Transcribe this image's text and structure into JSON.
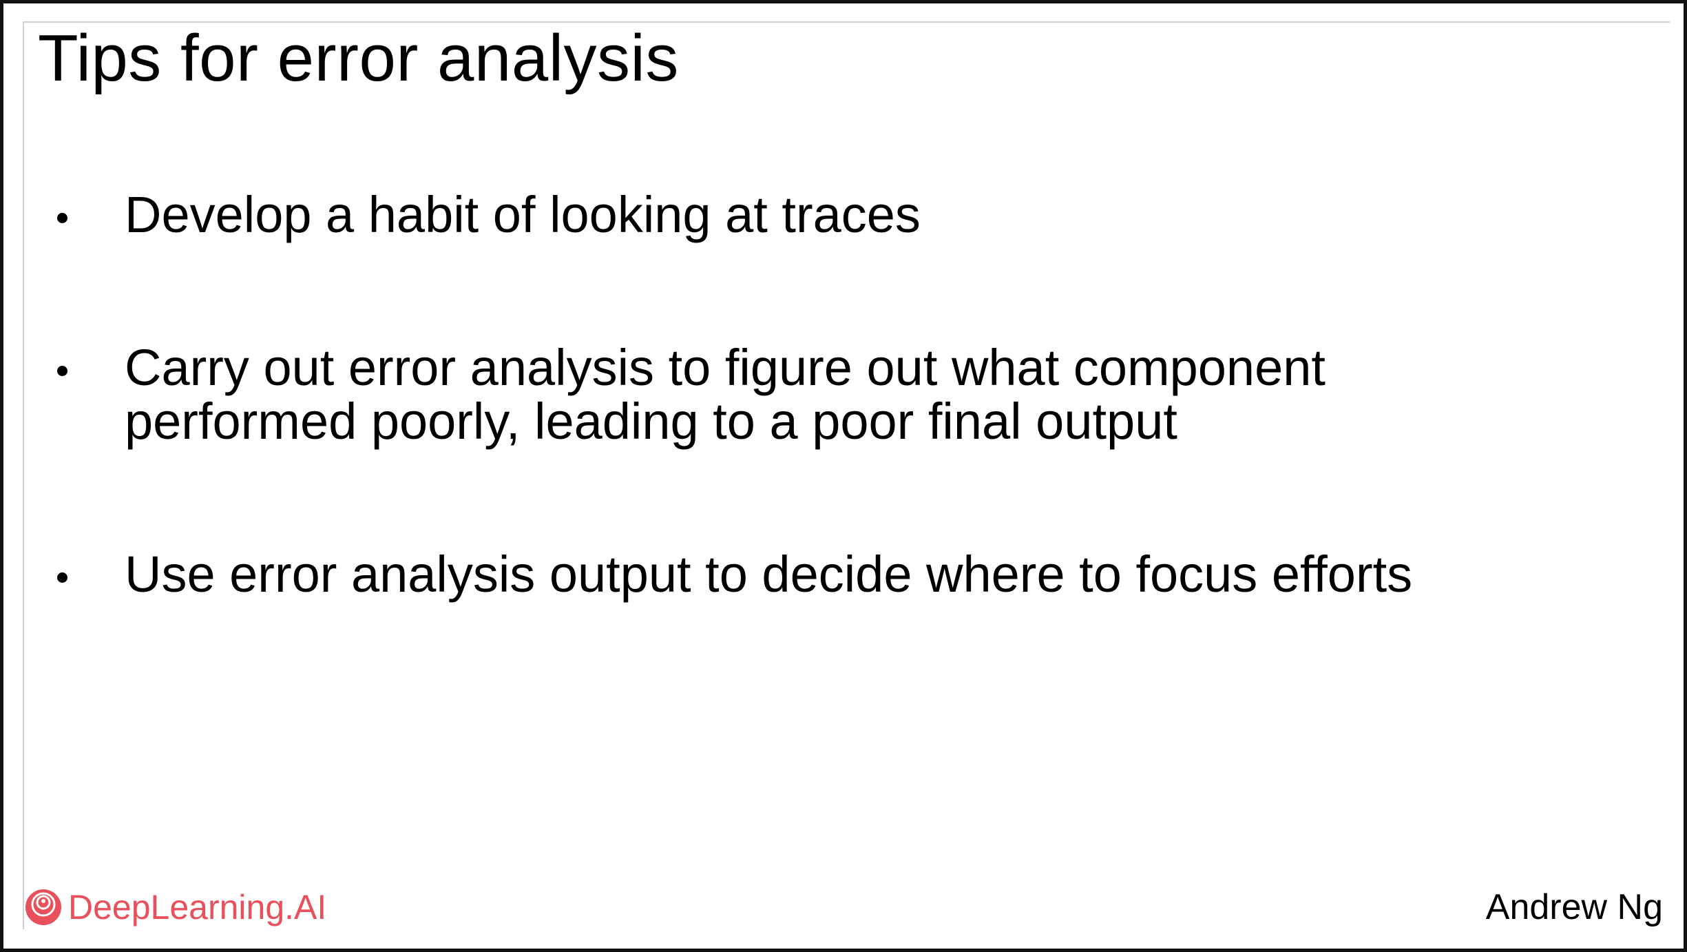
{
  "slide": {
    "title": "Tips for error analysis",
    "bullets": [
      {
        "text_lines": [
          "Develop a habit of looking at traces"
        ]
      },
      {
        "text_lines": [
          "Carry out error analysis to figure out what component",
          "performed poorly, leading to a poor final output"
        ]
      },
      {
        "text_lines": [
          "Use error analysis output to decide where to focus efforts"
        ]
      }
    ],
    "footer": {
      "logo_text": "DeepLearning.AI",
      "author": "Andrew Ng"
    }
  },
  "colors": {
    "brand": "#e8505b",
    "text": "#000000",
    "frame": "#111111"
  },
  "icons": {
    "logo": "deeplearning-ai-logo-icon",
    "bullet": "bullet-dot-icon"
  }
}
